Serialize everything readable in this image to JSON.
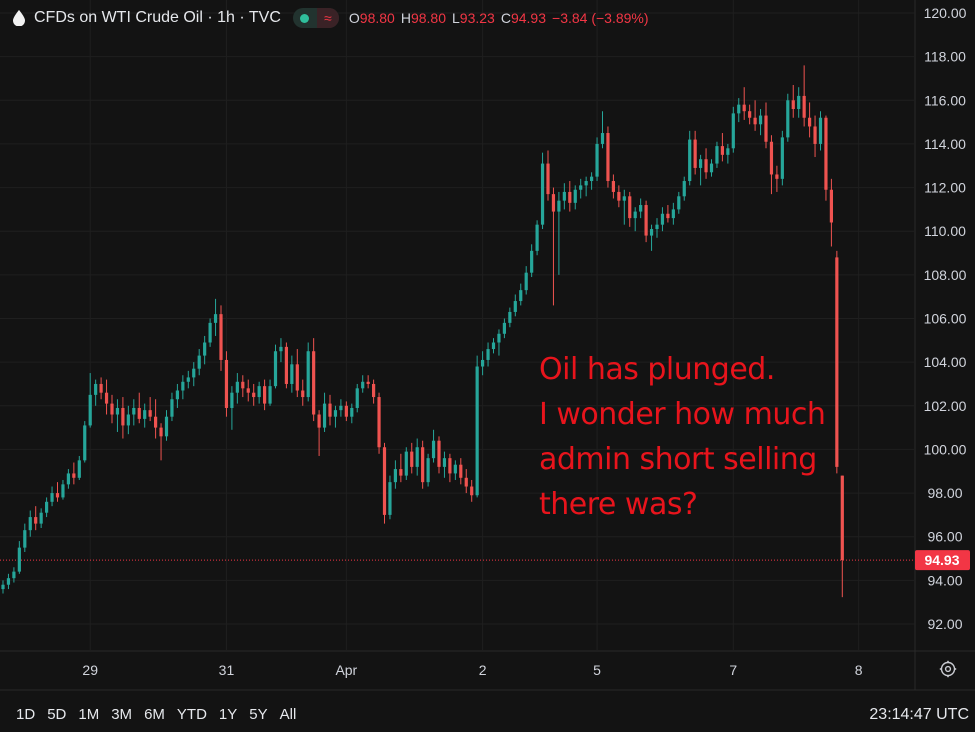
{
  "header": {
    "symbol_title": "CFDs on WTI Crude Oil",
    "interval": "1h",
    "source": "TVC",
    "separator": "·",
    "logo_icon": "drop-icon",
    "status_icon": "market-open-dot-icon",
    "wave_icon": "waves-icon",
    "wave_glyph": "≈",
    "ohlc": {
      "o_label": "O",
      "o_value": "98.80",
      "h_label": "H",
      "h_value": "98.80",
      "l_label": "L",
      "l_value": "93.23",
      "c_label": "C",
      "c_value": "94.93",
      "change": "−3.84 (−3.89%)"
    }
  },
  "annotation": {
    "lines": [
      "Oil has plunged.",
      "I wonder how much",
      "admin short selling",
      "there was?"
    ],
    "color": "#e8141c"
  },
  "footer": {
    "ranges": [
      "1D",
      "5D",
      "1M",
      "3M",
      "6M",
      "YTD",
      "1Y",
      "5Y",
      "All"
    ],
    "clock": "23:14:47 UTC",
    "settings_icon": "gear-icon"
  },
  "colors": {
    "background": "#131313",
    "up": "#26a69a",
    "down": "#ef5350",
    "price_tag": "#f23645",
    "grid": "#1f1f1f"
  },
  "chart_data": {
    "type": "candlestick",
    "title": "CFDs on WTI Crude Oil · 1h · TVC",
    "ylim": [
      91.0,
      120.5
    ],
    "y_ticks": [
      "120.00",
      "118.00",
      "116.00",
      "114.00",
      "112.00",
      "110.00",
      "108.00",
      "106.00",
      "104.00",
      "102.00",
      "100.00",
      "98.00",
      "96.00",
      "94.00",
      "92.00"
    ],
    "y_tick_values": [
      120,
      118,
      116,
      114,
      112,
      110,
      108,
      106,
      104,
      102,
      100,
      98,
      96,
      94,
      92
    ],
    "x_ticks": [
      "29",
      "31",
      "Apr",
      "2",
      "5",
      "7",
      "8"
    ],
    "x_tick_index": [
      16,
      41,
      63,
      88,
      109,
      134,
      157
    ],
    "last_price": 94.93,
    "last_price_label": "94.93",
    "grid": true,
    "series": [
      {
        "ohlc": [
          [
            93.6,
            94.0,
            93.4,
            93.8
          ],
          [
            93.8,
            94.3,
            93.6,
            94.1
          ],
          [
            94.1,
            94.6,
            93.9,
            94.4
          ],
          [
            94.4,
            95.8,
            94.3,
            95.5
          ],
          [
            95.5,
            96.6,
            95.3,
            96.3
          ],
          [
            96.3,
            97.2,
            96.0,
            96.9
          ],
          [
            96.9,
            97.4,
            96.3,
            96.6
          ],
          [
            96.6,
            97.3,
            96.4,
            97.1
          ],
          [
            97.1,
            97.8,
            96.9,
            97.6
          ],
          [
            97.6,
            98.3,
            97.4,
            98.0
          ],
          [
            98.0,
            98.5,
            97.6,
            97.8
          ],
          [
            97.8,
            98.6,
            97.7,
            98.4
          ],
          [
            98.4,
            99.1,
            98.2,
            98.9
          ],
          [
            98.9,
            99.4,
            98.4,
            98.7
          ],
          [
            98.7,
            99.7,
            98.6,
            99.5
          ],
          [
            99.5,
            101.3,
            99.4,
            101.1
          ],
          [
            101.1,
            103.5,
            101.0,
            102.5
          ],
          [
            102.5,
            103.2,
            102.0,
            103.0
          ],
          [
            103.0,
            103.3,
            102.3,
            102.6
          ],
          [
            102.6,
            103.2,
            101.6,
            102.1
          ],
          [
            102.1,
            102.5,
            101.2,
            101.6
          ],
          [
            101.6,
            102.3,
            100.8,
            101.9
          ],
          [
            101.9,
            102.4,
            100.5,
            101.1
          ],
          [
            101.1,
            102.0,
            100.7,
            101.6
          ],
          [
            101.6,
            102.3,
            101.1,
            101.9
          ],
          [
            101.9,
            102.6,
            101.2,
            101.4
          ],
          [
            101.4,
            102.1,
            101.0,
            101.8
          ],
          [
            101.8,
            102.4,
            101.3,
            101.5
          ],
          [
            101.5,
            102.3,
            100.5,
            101.0
          ],
          [
            101.0,
            101.2,
            99.5,
            100.6
          ],
          [
            100.6,
            101.8,
            100.4,
            101.5
          ],
          [
            101.5,
            102.6,
            101.3,
            102.3
          ],
          [
            102.3,
            103.0,
            101.9,
            102.7
          ],
          [
            102.7,
            103.4,
            102.3,
            103.1
          ],
          [
            103.1,
            103.6,
            102.8,
            103.3
          ],
          [
            103.3,
            104.0,
            102.9,
            103.7
          ],
          [
            103.7,
            104.6,
            103.4,
            104.3
          ],
          [
            104.3,
            105.2,
            103.9,
            104.9
          ],
          [
            104.9,
            106.0,
            104.7,
            105.8
          ],
          [
            105.8,
            106.9,
            105.2,
            106.2
          ],
          [
            106.2,
            106.6,
            103.6,
            104.1
          ],
          [
            104.1,
            104.5,
            101.5,
            101.9
          ],
          [
            101.9,
            102.9,
            100.9,
            102.6
          ],
          [
            102.6,
            103.5,
            102.1,
            103.1
          ],
          [
            103.1,
            103.4,
            102.4,
            102.8
          ],
          [
            102.8,
            103.2,
            102.2,
            102.6
          ],
          [
            102.6,
            103.0,
            102.0,
            102.4
          ],
          [
            102.4,
            103.1,
            102.1,
            102.9
          ],
          [
            102.9,
            103.2,
            101.8,
            102.1
          ],
          [
            102.1,
            103.2,
            102.0,
            102.9
          ],
          [
            102.9,
            104.8,
            102.8,
            104.5
          ],
          [
            104.5,
            105.1,
            104.0,
            104.7
          ],
          [
            104.7,
            104.9,
            102.8,
            103.0
          ],
          [
            103.0,
            104.3,
            102.6,
            103.9
          ],
          [
            103.9,
            104.6,
            102.4,
            102.7
          ],
          [
            102.7,
            103.2,
            102.0,
            102.4
          ],
          [
            102.4,
            104.9,
            102.2,
            104.5
          ],
          [
            104.5,
            105.1,
            101.3,
            101.6
          ],
          [
            101.6,
            101.8,
            99.7,
            101.0
          ],
          [
            101.0,
            102.6,
            100.8,
            102.1
          ],
          [
            102.1,
            102.5,
            101.1,
            101.5
          ],
          [
            101.5,
            102.0,
            101.0,
            101.8
          ],
          [
            101.8,
            102.3,
            101.5,
            102.0
          ],
          [
            102.0,
            102.2,
            101.3,
            101.5
          ],
          [
            101.5,
            102.1,
            101.2,
            101.9
          ],
          [
            101.9,
            103.0,
            101.7,
            102.8
          ],
          [
            102.8,
            103.4,
            102.6,
            103.1
          ],
          [
            103.1,
            103.4,
            102.8,
            103.0
          ],
          [
            103.0,
            103.2,
            102.1,
            102.4
          ],
          [
            102.4,
            102.6,
            99.8,
            100.1
          ],
          [
            100.1,
            100.3,
            96.6,
            97.0
          ],
          [
            97.0,
            98.8,
            96.8,
            98.5
          ],
          [
            98.5,
            99.5,
            98.2,
            99.1
          ],
          [
            99.1,
            99.8,
            98.5,
            98.8
          ],
          [
            98.8,
            100.1,
            98.6,
            99.9
          ],
          [
            99.9,
            100.3,
            98.9,
            99.2
          ],
          [
            99.2,
            100.5,
            98.8,
            100.1
          ],
          [
            100.1,
            100.4,
            98.2,
            98.5
          ],
          [
            98.5,
            99.8,
            98.3,
            99.6
          ],
          [
            99.6,
            100.9,
            99.4,
            100.4
          ],
          [
            100.4,
            100.6,
            98.9,
            99.2
          ],
          [
            99.2,
            99.9,
            98.7,
            99.6
          ],
          [
            99.6,
            99.8,
            98.5,
            98.9
          ],
          [
            98.9,
            99.5,
            98.6,
            99.3
          ],
          [
            99.3,
            99.6,
            98.4,
            98.7
          ],
          [
            98.7,
            99.1,
            98.0,
            98.3
          ],
          [
            98.3,
            98.6,
            97.6,
            97.9
          ],
          [
            97.9,
            104.3,
            97.8,
            103.8
          ],
          [
            103.8,
            104.5,
            103.4,
            104.1
          ],
          [
            104.1,
            104.9,
            103.8,
            104.6
          ],
          [
            104.6,
            105.1,
            104.4,
            104.9
          ],
          [
            104.9,
            105.5,
            104.3,
            105.3
          ],
          [
            105.3,
            106.0,
            105.1,
            105.8
          ],
          [
            105.8,
            106.5,
            105.6,
            106.3
          ],
          [
            106.3,
            107.1,
            106.1,
            106.8
          ],
          [
            106.8,
            107.6,
            106.6,
            107.3
          ],
          [
            107.3,
            108.4,
            107.1,
            108.1
          ],
          [
            108.1,
            109.4,
            107.9,
            109.1
          ],
          [
            109.1,
            110.5,
            108.9,
            110.3
          ],
          [
            110.3,
            113.6,
            110.1,
            113.1
          ],
          [
            113.1,
            113.7,
            111.4,
            111.7
          ],
          [
            111.7,
            112.0,
            106.6,
            110.9
          ],
          [
            110.9,
            111.8,
            108.0,
            111.4
          ],
          [
            111.4,
            112.2,
            111.0,
            111.8
          ],
          [
            111.8,
            112.3,
            110.9,
            111.3
          ],
          [
            111.3,
            112.1,
            111.0,
            111.9
          ],
          [
            111.9,
            112.4,
            111.5,
            112.1
          ],
          [
            112.1,
            112.5,
            111.6,
            112.3
          ],
          [
            112.3,
            112.7,
            111.9,
            112.5
          ],
          [
            112.5,
            114.3,
            112.3,
            114.0
          ],
          [
            114.0,
            115.5,
            113.8,
            114.5
          ],
          [
            114.5,
            114.8,
            112.0,
            112.3
          ],
          [
            112.3,
            112.6,
            111.5,
            111.8
          ],
          [
            111.8,
            112.1,
            111.1,
            111.4
          ],
          [
            111.4,
            111.9,
            110.3,
            111.6
          ],
          [
            111.6,
            111.8,
            110.2,
            110.6
          ],
          [
            110.6,
            111.1,
            110.0,
            110.9
          ],
          [
            110.9,
            111.5,
            110.6,
            111.2
          ],
          [
            111.2,
            111.4,
            109.5,
            109.8
          ],
          [
            109.8,
            110.3,
            109.1,
            110.1
          ],
          [
            110.1,
            110.6,
            109.7,
            110.3
          ],
          [
            110.3,
            111.1,
            110.0,
            110.8
          ],
          [
            110.8,
            111.2,
            110.4,
            110.6
          ],
          [
            110.6,
            111.3,
            110.3,
            111.0
          ],
          [
            111.0,
            111.8,
            110.8,
            111.6
          ],
          [
            111.6,
            112.5,
            111.4,
            112.3
          ],
          [
            112.3,
            114.6,
            112.1,
            114.2
          ],
          [
            114.2,
            114.6,
            112.6,
            112.9
          ],
          [
            112.9,
            113.5,
            112.1,
            113.3
          ],
          [
            113.3,
            113.8,
            112.4,
            112.7
          ],
          [
            112.7,
            113.3,
            112.5,
            113.1
          ],
          [
            113.1,
            114.1,
            112.9,
            113.9
          ],
          [
            113.9,
            114.5,
            113.2,
            113.5
          ],
          [
            113.5,
            114.0,
            113.1,
            113.8
          ],
          [
            113.8,
            115.7,
            113.6,
            115.4
          ],
          [
            115.4,
            116.1,
            115.0,
            115.8
          ],
          [
            115.8,
            116.6,
            115.1,
            115.5
          ],
          [
            115.5,
            115.8,
            114.9,
            115.2
          ],
          [
            115.2,
            116.0,
            114.6,
            114.9
          ],
          [
            114.9,
            115.6,
            114.4,
            115.3
          ],
          [
            115.3,
            115.9,
            113.8,
            114.1
          ],
          [
            114.1,
            114.4,
            111.7,
            112.6
          ],
          [
            112.6,
            113.0,
            111.8,
            112.4
          ],
          [
            112.4,
            114.6,
            112.1,
            114.3
          ],
          [
            114.3,
            116.3,
            114.1,
            116.0
          ],
          [
            116.0,
            116.7,
            115.2,
            115.6
          ],
          [
            115.6,
            116.6,
            115.2,
            116.2
          ],
          [
            116.2,
            117.6,
            114.8,
            115.2
          ],
          [
            115.2,
            115.9,
            114.3,
            114.8
          ],
          [
            114.8,
            115.3,
            113.4,
            114.0
          ],
          [
            114.0,
            115.5,
            113.7,
            115.2
          ],
          [
            115.2,
            115.3,
            111.4,
            111.9
          ],
          [
            111.9,
            112.4,
            109.3,
            110.4
          ],
          [
            108.8,
            109.1,
            98.9,
            99.2
          ],
          [
            98.8,
            98.8,
            93.23,
            94.93
          ]
        ]
      }
    ]
  }
}
